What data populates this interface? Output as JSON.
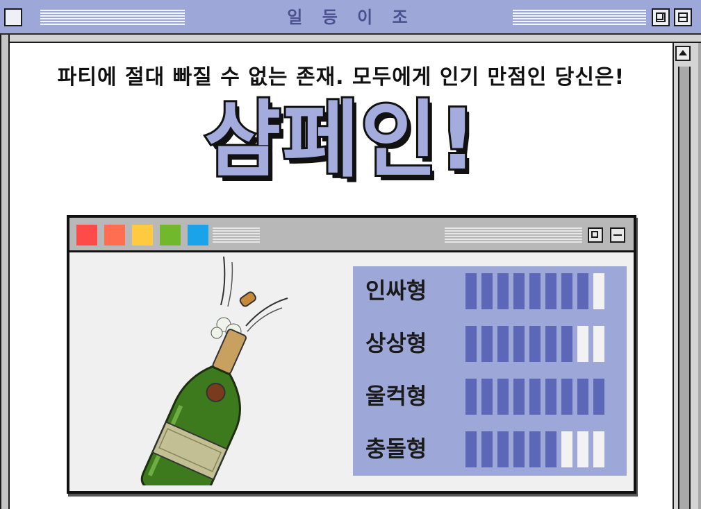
{
  "window": {
    "title": "일 등 이 조"
  },
  "content": {
    "intro_text": "파티에 절대 빠질 수 없는 존재. 모두에게 인기 만점인 당신은!",
    "result_title": "샴페인!"
  },
  "inner_window": {
    "traffic_colors": [
      "#ff4a4a",
      "#ff6e50",
      "#ffc940",
      "#72b82c",
      "#1aa3e8"
    ],
    "illustration_icon": "champagne-bottle-icon"
  },
  "stats": {
    "max": 9,
    "bar_color": "#5c67b8",
    "empty_color": "#f2f2f2",
    "panel_color": "#9ea8d8",
    "items": [
      {
        "label": "인싸형",
        "value": 8
      },
      {
        "label": "상상형",
        "value": 7
      },
      {
        "label": "울컥형",
        "value": 9
      },
      {
        "label": "충돌형",
        "value": 6
      }
    ]
  }
}
